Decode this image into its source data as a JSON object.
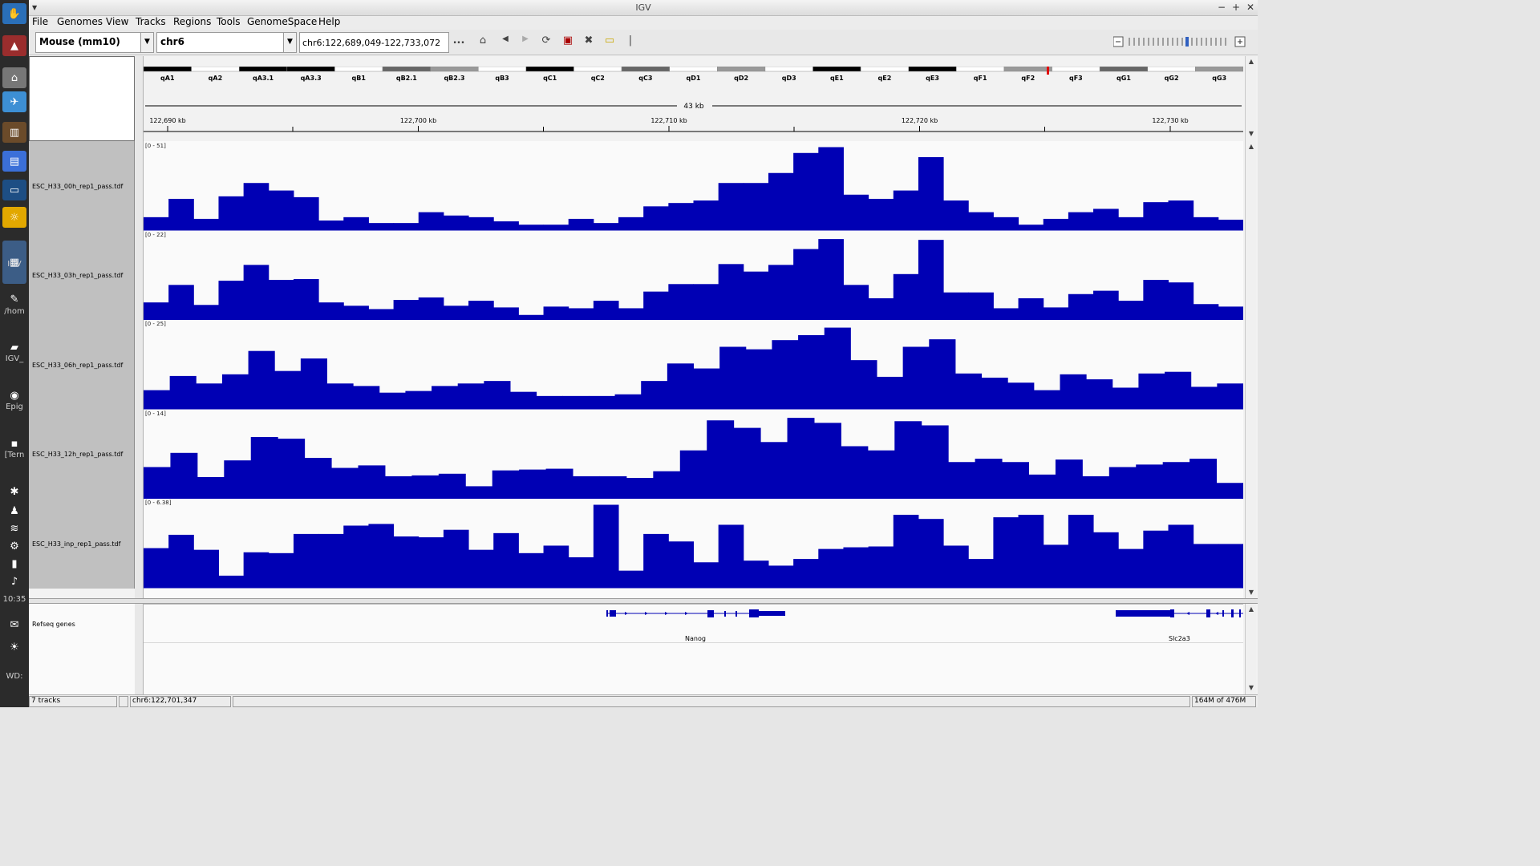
{
  "window": {
    "title": "IGV"
  },
  "menu": [
    "File",
    "Genomes",
    "View",
    "Tracks",
    "Regions",
    "Tools",
    "GenomeSpace",
    "Help"
  ],
  "toolbar": {
    "genome": "Mouse (mm10)",
    "chromosome": "chr6",
    "locus": "chr6:122,689,049-122,733,072",
    "more_label": "..."
  },
  "taskbar": {
    "labels": [
      "IGV",
      "/hom",
      "IGV_",
      "Epig",
      "[Tern",
      "10:35",
      "WD:"
    ]
  },
  "ideogram": {
    "bands": [
      "qA1",
      "qA2",
      "qA3.1",
      "qA3.3",
      "qB1",
      "qB2.1",
      "qB2.3",
      "qB3",
      "qC1",
      "qC2",
      "qC3",
      "qD1",
      "qD2",
      "qD3",
      "qE1",
      "qE2",
      "qE3",
      "qF1",
      "qF2",
      "qF3",
      "qG1",
      "qG2",
      "qG3"
    ]
  },
  "ruler": {
    "span_label": "43 kb",
    "ticks": [
      "122,690 kb",
      "122,700 kb",
      "122,710 kb",
      "122,720 kb",
      "122,730 kb"
    ]
  },
  "tracks": [
    {
      "name": "ESC_H33_00h_rep1_pass.tdf",
      "range": "[0 - 51]",
      "values": [
        0.16,
        0.38,
        0.14,
        0.41,
        0.57,
        0.48,
        0.4,
        0.12,
        0.16,
        0.09,
        0.09,
        0.22,
        0.18,
        0.16,
        0.11,
        0.07,
        0.07,
        0.14,
        0.09,
        0.16,
        0.29,
        0.33,
        0.36,
        0.57,
        0.57,
        0.69,
        0.93,
        1.0,
        0.43,
        0.38,
        0.48,
        0.88,
        0.36,
        0.22,
        0.16,
        0.07,
        0.14,
        0.22,
        0.26,
        0.16,
        0.34,
        0.36,
        0.16,
        0.13
      ]
    },
    {
      "name": "ESC_H33_03h_rep1_pass.tdf",
      "range": "[0 - 22]",
      "values": [
        0.21,
        0.42,
        0.18,
        0.47,
        0.66,
        0.48,
        0.49,
        0.21,
        0.17,
        0.13,
        0.24,
        0.27,
        0.17,
        0.23,
        0.15,
        0.06,
        0.16,
        0.14,
        0.23,
        0.14,
        0.34,
        0.43,
        0.43,
        0.67,
        0.58,
        0.66,
        0.85,
        0.97,
        0.42,
        0.26,
        0.55,
        0.96,
        0.33,
        0.33,
        0.14,
        0.26,
        0.15,
        0.31,
        0.35,
        0.23,
        0.48,
        0.45,
        0.19,
        0.16
      ]
    },
    {
      "name": "ESC_H33_06h_rep1_pass.tdf",
      "range": "[0 - 25]",
      "values": [
        0.23,
        0.4,
        0.31,
        0.42,
        0.7,
        0.46,
        0.61,
        0.31,
        0.28,
        0.2,
        0.22,
        0.28,
        0.31,
        0.34,
        0.21,
        0.16,
        0.16,
        0.16,
        0.18,
        0.34,
        0.55,
        0.49,
        0.75,
        0.72,
        0.83,
        0.89,
        0.98,
        0.59,
        0.39,
        0.75,
        0.84,
        0.43,
        0.38,
        0.32,
        0.23,
        0.42,
        0.36,
        0.26,
        0.43,
        0.45,
        0.27,
        0.31
      ]
    },
    {
      "name": "ESC_H33_12h_rep1_pass.tdf",
      "range": "[0 - 14]",
      "values": [
        0.38,
        0.55,
        0.26,
        0.46,
        0.74,
        0.72,
        0.49,
        0.37,
        0.4,
        0.27,
        0.28,
        0.3,
        0.15,
        0.34,
        0.35,
        0.36,
        0.27,
        0.27,
        0.25,
        0.33,
        0.58,
        0.94,
        0.85,
        0.68,
        0.97,
        0.91,
        0.63,
        0.58,
        0.93,
        0.88,
        0.44,
        0.48,
        0.44,
        0.29,
        0.47,
        0.27,
        0.38,
        0.41,
        0.44,
        0.48,
        0.19
      ]
    },
    {
      "name": "ESC_H33_inp_rep1_pass.tdf",
      "range": "[0 - 6.38]",
      "values": [
        0.48,
        0.64,
        0.46,
        0.15,
        0.43,
        0.42,
        0.65,
        0.65,
        0.75,
        0.77,
        0.62,
        0.61,
        0.7,
        0.46,
        0.66,
        0.42,
        0.51,
        0.37,
        1.0,
        0.21,
        0.65,
        0.56,
        0.31,
        0.76,
        0.33,
        0.27,
        0.35,
        0.47,
        0.49,
        0.5,
        0.88,
        0.83,
        0.51,
        0.35,
        0.85,
        0.88,
        0.52,
        0.88,
        0.67,
        0.47,
        0.69,
        0.76,
        0.53,
        0.53
      ]
    }
  ],
  "feature_track": {
    "name": "Refseq genes",
    "genes": [
      "Nanog",
      "Slc2a3"
    ]
  },
  "status": {
    "tracks": "7 tracks",
    "position": "chr6:122,701,347",
    "memory": "164M of 476M"
  },
  "colors": {
    "track_fill": "#0000b4",
    "data_bg": "#fafafa"
  }
}
